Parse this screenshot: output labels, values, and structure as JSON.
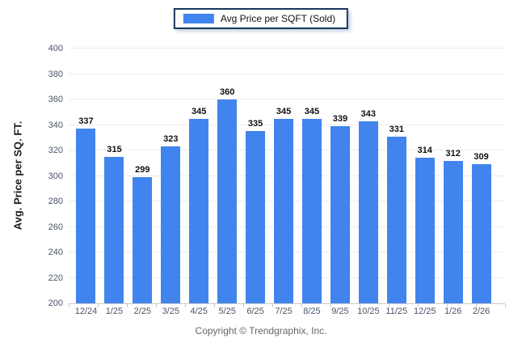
{
  "legend": {
    "label": "Avg Price per SQFT (Sold)"
  },
  "footer": {
    "copyright": "Copyright © Trendgraphix, Inc."
  },
  "colors": {
    "bar": "#4184ee",
    "legend_border": "#17375e",
    "grid": "#ececec",
    "axis_line": "#c9c9c9",
    "tick_text": "#4a5568",
    "value_text": "#111111",
    "footer_text": "#666666"
  },
  "chart_data": {
    "type": "bar",
    "title": "",
    "legend_entries": [
      "Avg Price per SQFT (Sold)"
    ],
    "legend_position": "top",
    "grid": true,
    "categories": [
      "12/24",
      "1/25",
      "2/25",
      "3/25",
      "4/25",
      "5/25",
      "6/25",
      "7/25",
      "8/25",
      "9/25",
      "10/25",
      "11/25",
      "12/25",
      "1/26",
      "2/26"
    ],
    "values": [
      337,
      315,
      299,
      323,
      345,
      360,
      335,
      345,
      345,
      339,
      343,
      331,
      314,
      312,
      309
    ],
    "xlabel": "",
    "ylabel": "Avg. Price per SQ. FT.",
    "ylim": [
      200,
      400
    ],
    "ytick_step": 20,
    "yticks": [
      200,
      220,
      240,
      260,
      280,
      300,
      320,
      340,
      360,
      380,
      400
    ]
  }
}
